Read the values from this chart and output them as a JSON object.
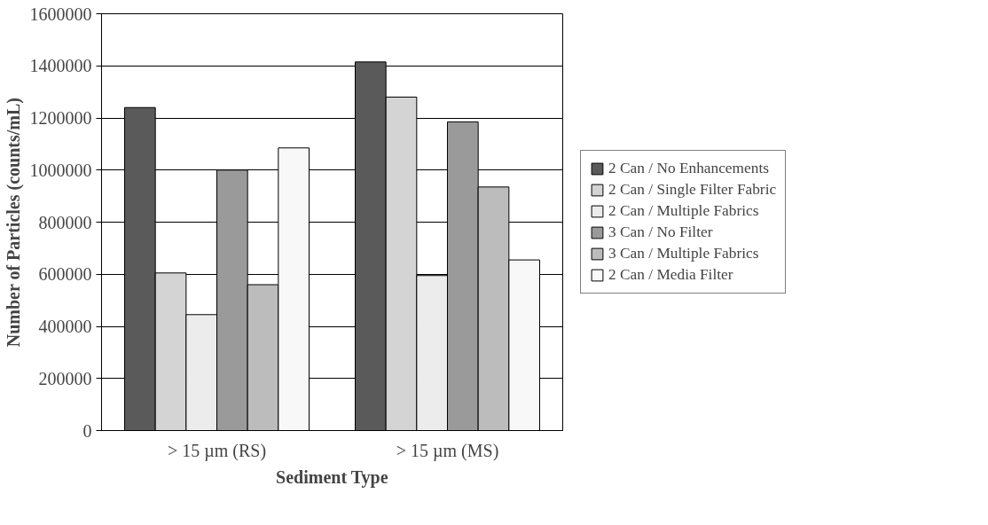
{
  "chart_data": {
    "type": "bar",
    "xlabel": "Sediment Type",
    "ylabel": "Number of Particles (counts/mL)",
    "categories": [
      "> 15 µm (RS)",
      "> 15 µm (MS)"
    ],
    "series": [
      {
        "name": "2 Can / No Enhancements",
        "color": "#5a5a5a",
        "values": [
          1240000,
          1415000
        ]
      },
      {
        "name": "2 Can / Single Filter Fabric",
        "color": "#d4d4d4",
        "values": [
          605000,
          1280000
        ]
      },
      {
        "name": "2 Can / Multiple Fabrics",
        "color": "#ececec",
        "values": [
          445000,
          595000
        ]
      },
      {
        "name": "3 Can / No Filter",
        "color": "#9a9a9a",
        "values": [
          1000000,
          1185000
        ]
      },
      {
        "name": "3 Can / Multiple Fabrics",
        "color": "#bcbcbc",
        "values": [
          560000,
          935000
        ]
      },
      {
        "name": "2 Can / Media Filter",
        "color": "#f8f8f8",
        "values": [
          1085000,
          655000
        ]
      }
    ],
    "ylim": [
      0,
      1600000
    ],
    "yticks": [
      0,
      200000,
      400000,
      600000,
      800000,
      1000000,
      1200000,
      1400000,
      1600000
    ],
    "grid": "y",
    "legend": "right"
  }
}
